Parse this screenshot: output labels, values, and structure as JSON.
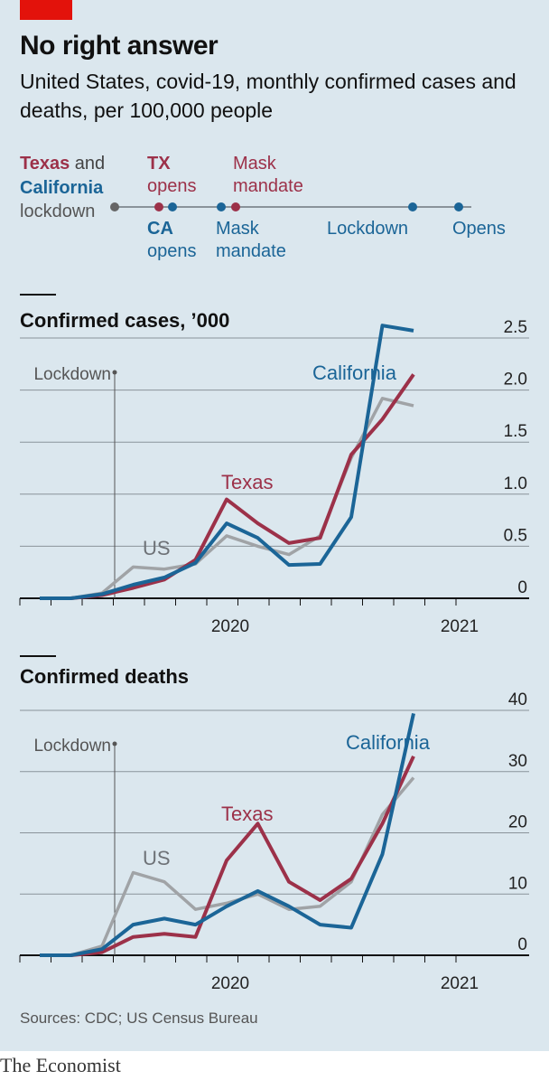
{
  "header": {
    "title": "No right answer",
    "subtitle": "United States, covid-19, monthly confirmed cases and deaths, per 100,000 people"
  },
  "timeline": {
    "legend_line1_a": "Texas",
    "legend_line1_b": " and",
    "legend_line2": "California",
    "legend_line3": "lockdown",
    "tx_opens_1": "TX",
    "tx_opens_2": "opens",
    "tx_mask_1": "Mask",
    "tx_mask_2": "mandate",
    "ca_opens_1": "CA",
    "ca_opens_2": "opens",
    "ca_mask_1": "Mask",
    "ca_mask_2": "mandate",
    "ca_lockdown": "Lockdown",
    "ca_reopens": "Opens"
  },
  "colors": {
    "texas": "#9c3149",
    "california": "#1b6597",
    "us": "#a0a3a6",
    "text_us": "#6e7277",
    "grid": "#8a939a",
    "background": "#dbe7ee"
  },
  "source": "Sources: CDC; US Census Bureau",
  "brand": "The Economist",
  "chart_data": [
    {
      "type": "line",
      "title": "Confirmed cases, ’000",
      "x": [
        "2020-01",
        "2020-02",
        "2020-03",
        "2020-04",
        "2020-05",
        "2020-06",
        "2020-07",
        "2020-08",
        "2020-09",
        "2020-10",
        "2020-11",
        "2020-12",
        "2021-01",
        "2021-02"
      ],
      "x_tick_labels": [
        "2020",
        "2021"
      ],
      "ylim": [
        0,
        2.5
      ],
      "y_ticks": [
        0,
        0.5,
        1.0,
        1.5,
        2.0,
        2.5
      ],
      "y_tick_labels": [
        "0",
        "0.5",
        "1.0",
        "1.5",
        "2.0",
        "2.5"
      ],
      "annotation": "Lockdown",
      "series": [
        {
          "name": "US",
          "values": [
            0.0,
            0.0,
            0.05,
            0.3,
            0.28,
            0.33,
            0.6,
            0.5,
            0.42,
            0.6,
            1.35,
            1.92,
            1.85,
            null
          ]
        },
        {
          "name": "Texas",
          "values": [
            0.0,
            0.0,
            0.03,
            0.1,
            0.18,
            0.37,
            0.95,
            0.72,
            0.53,
            0.58,
            1.38,
            1.72,
            2.15,
            null
          ]
        },
        {
          "name": "California",
          "values": [
            0.0,
            0.0,
            0.04,
            0.13,
            0.2,
            0.34,
            0.72,
            0.58,
            0.32,
            0.33,
            0.78,
            2.62,
            2.57,
            null
          ]
        }
      ]
    },
    {
      "type": "line",
      "title": "Confirmed deaths",
      "x": [
        "2020-01",
        "2020-02",
        "2020-03",
        "2020-04",
        "2020-05",
        "2020-06",
        "2020-07",
        "2020-08",
        "2020-09",
        "2020-10",
        "2020-11",
        "2020-12",
        "2021-01",
        "2021-02"
      ],
      "x_tick_labels": [
        "2020",
        "2021"
      ],
      "ylim": [
        0,
        40
      ],
      "y_ticks": [
        0,
        10,
        20,
        30,
        40
      ],
      "y_tick_labels": [
        "0",
        "10",
        "20",
        "30",
        "40"
      ],
      "annotation": "Lockdown",
      "series": [
        {
          "name": "US",
          "values": [
            0,
            0,
            1.5,
            13.5,
            12,
            7.5,
            8.5,
            10,
            7.5,
            8,
            12,
            23,
            29,
            null
          ]
        },
        {
          "name": "Texas",
          "values": [
            0,
            0,
            0.5,
            3,
            3.5,
            3,
            15.5,
            21.5,
            12,
            9,
            12.5,
            21.5,
            32.5,
            null
          ]
        },
        {
          "name": "California",
          "values": [
            0,
            0,
            1,
            5,
            6,
            5,
            8,
            10.5,
            8,
            5,
            4.5,
            16.5,
            39.5,
            null
          ]
        }
      ]
    }
  ]
}
